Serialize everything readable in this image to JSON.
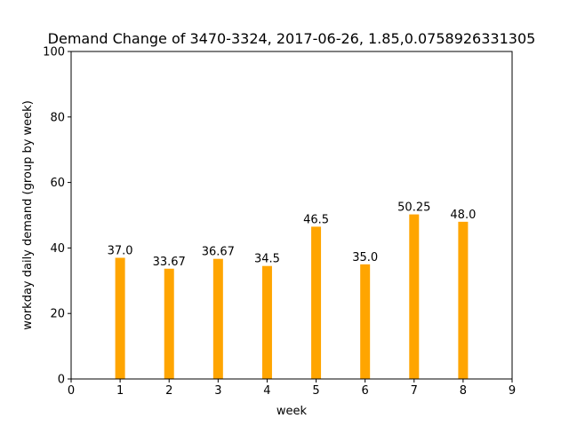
{
  "chart_data": {
    "type": "bar",
    "title": "Demand Change of 3470-3324, 2017-06-26, 1.85,0.0758926331305",
    "xlabel": "week",
    "ylabel": "workday daily demand (group by week)",
    "x": [
      1,
      2,
      3,
      4,
      5,
      6,
      7,
      8
    ],
    "values": [
      37.0,
      33.67,
      36.67,
      34.5,
      46.5,
      35.0,
      50.25,
      48.0
    ],
    "value_labels": [
      "37.0",
      "33.67",
      "36.67",
      "34.5",
      "46.5",
      "35.0",
      "50.25",
      "48.0"
    ],
    "xlim": [
      0,
      9
    ],
    "ylim": [
      0,
      100
    ],
    "xticks": [
      "0",
      "1",
      "2",
      "3",
      "4",
      "5",
      "6",
      "7",
      "8",
      "9"
    ],
    "yticks": [
      "0",
      "20",
      "40",
      "60",
      "80",
      "100"
    ],
    "bar_color": "#ffa500",
    "grid": false
  }
}
